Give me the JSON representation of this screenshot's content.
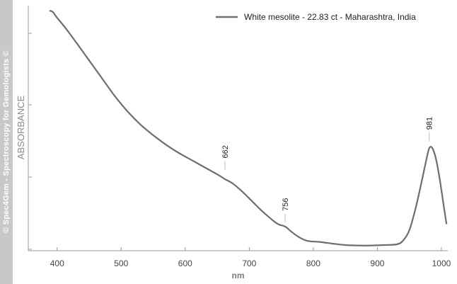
{
  "watermark": "© Spec4Gem - Spectroscopy for Gemologists ©",
  "colors": {
    "line": "#6e6e6e",
    "axis": "#9a9a9a",
    "sidebar": "#c8c8c8"
  },
  "chart_data": {
    "type": "line",
    "xlabel": "nm",
    "ylabel": "ABSORBANCE",
    "xlim": [
      355,
      1010
    ],
    "ylim": [
      0,
      1
    ],
    "x_ticks": [
      400,
      500,
      600,
      700,
      800,
      900,
      1000
    ],
    "y_tick_labels_shown": false,
    "grid": false,
    "legend_position": "top-right",
    "series": [
      {
        "name": "White mesolite - 22.83 ct - Maharashtra, India",
        "x": [
          388,
          393,
          400,
          415,
          430,
          450,
          470,
          490,
          510,
          530,
          550,
          570,
          590,
          610,
          630,
          650,
          662,
          675,
          690,
          705,
          720,
          735,
          745,
          756,
          765,
          775,
          790,
          810,
          830,
          850,
          870,
          890,
          910,
          930,
          940,
          950,
          960,
          970,
          976,
          981,
          986,
          992,
          998,
          1004,
          1008
        ],
        "y": [
          1.0,
          0.995,
          0.97,
          0.92,
          0.865,
          0.79,
          0.715,
          0.64,
          0.575,
          0.52,
          0.475,
          0.435,
          0.4,
          0.37,
          0.34,
          0.31,
          0.29,
          0.27,
          0.235,
          0.195,
          0.155,
          0.12,
          0.1,
          0.09,
          0.07,
          0.05,
          0.03,
          0.025,
          0.018,
          0.012,
          0.01,
          0.01,
          0.012,
          0.015,
          0.03,
          0.075,
          0.17,
          0.29,
          0.365,
          0.42,
          0.42,
          0.37,
          0.28,
          0.17,
          0.1
        ]
      }
    ],
    "peak_labels": [
      {
        "x": 662,
        "y": 0.33,
        "label": "662"
      },
      {
        "x": 756,
        "y": 0.108,
        "label": "756"
      },
      {
        "x": 981,
        "y": 0.45,
        "label": "981"
      }
    ]
  }
}
